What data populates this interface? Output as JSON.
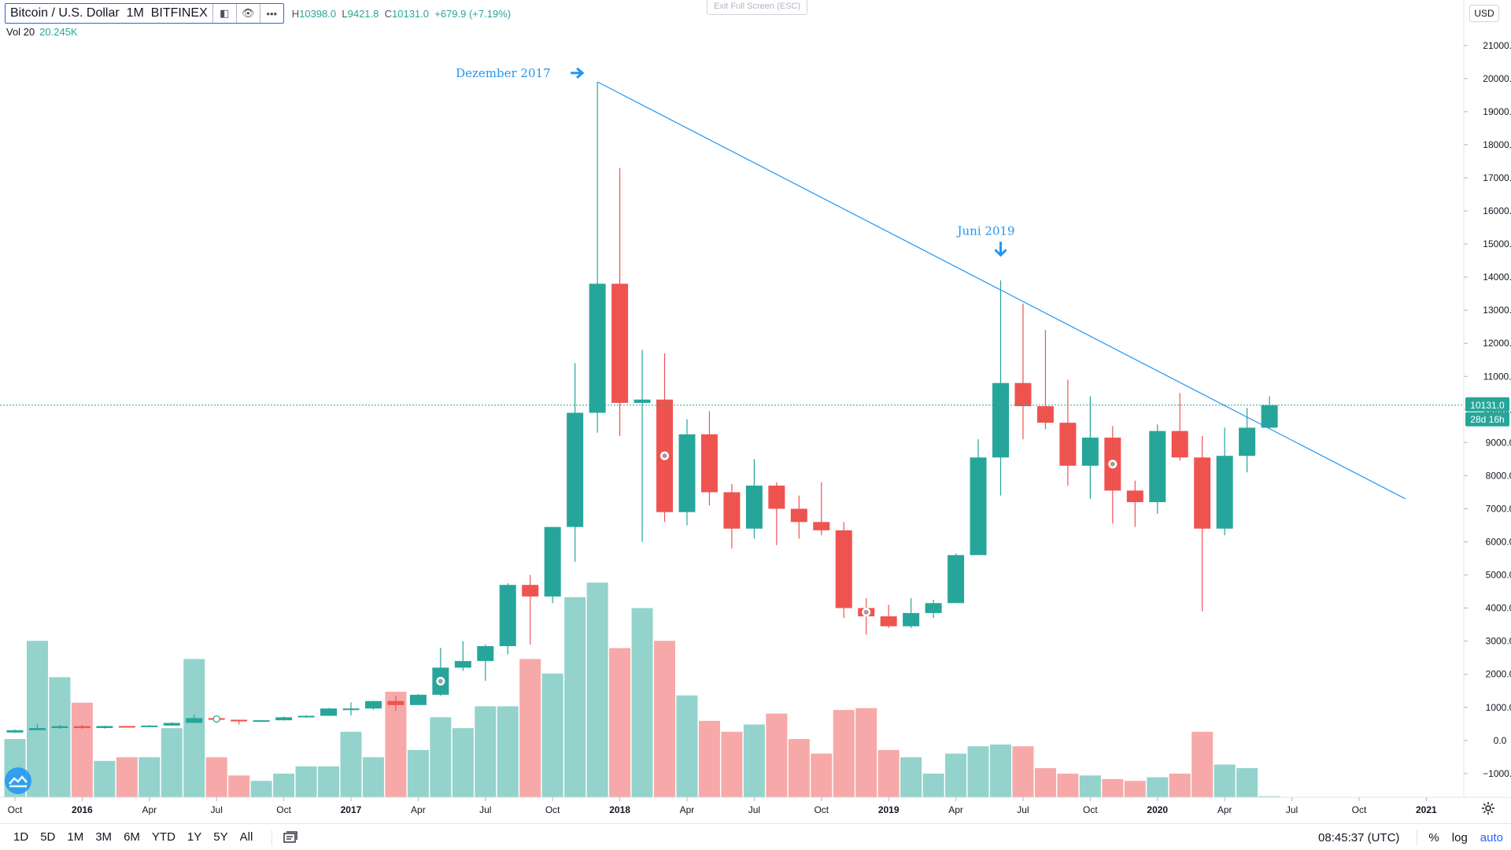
{
  "legend": {
    "symbol": "Bitcoin / U.S. Dollar",
    "interval": "1M",
    "exchange": "BITFINEX",
    "ohlc": {
      "h_label": "H",
      "h": "10398.0",
      "l_label": "L",
      "l": "9421.8",
      "c_label": "C",
      "c": "10131.0",
      "change": "+679.9 (+7.19%)"
    },
    "volume_label": "Vol 20",
    "volume_value": "20.245K"
  },
  "exit_fullscreen": "Exit Full Screen (ESC)",
  "currency": "USD",
  "price_label": "10131.0",
  "countdown_label": "28d 16h",
  "annotations": [
    {
      "text": "Dezember 2017",
      "x": "2017-12",
      "y": 20000
    },
    {
      "text": "Juni 2019",
      "x": "2019-06",
      "y": 14400
    }
  ],
  "timeframes": [
    "1D",
    "5D",
    "1M",
    "3M",
    "6M",
    "YTD",
    "1Y",
    "5Y",
    "All"
  ],
  "bottom_right": {
    "time": "08:45:37 (UTC)",
    "percent": "%",
    "log": "log",
    "auto": "auto"
  },
  "colors": {
    "up": "#26a69a",
    "down": "#ef5350",
    "vol_up": "#93d3cc",
    "vol_down": "#f6a9a8",
    "trendline": "#2196f3",
    "price_line": "#26a69a"
  },
  "icons": [
    "chart-type-icon",
    "eye-icon",
    "more-icon",
    "compare-icon",
    "gear-icon",
    "tradingview-logo-icon"
  ],
  "chart_data": {
    "type": "candlestick",
    "x_axis_ticks": [
      "Oct",
      "2016",
      "Apr",
      "Jul",
      "Oct",
      "2017",
      "Apr",
      "Jul",
      "Oct",
      "2018",
      "Apr",
      "Jul",
      "Oct",
      "2019",
      "Apr",
      "Jul",
      "Oct",
      "2020",
      "Apr",
      "Jul",
      "Oct",
      "2021"
    ],
    "y_axis_ticks": [
      -1000,
      0,
      1000,
      2000,
      3000,
      4000,
      5000,
      6000,
      7000,
      8000,
      9000,
      10000,
      11000,
      12000,
      13000,
      14000,
      15000,
      16000,
      17000,
      18000,
      19000,
      20000,
      21000
    ],
    "ylim": [
      -1800,
      22300
    ],
    "volume_ylim": [
      0,
      7500
    ],
    "trendline": {
      "from": {
        "x": "2017-12",
        "y": 19900
      },
      "to": {
        "x": "2020-12",
        "y": 7300
      }
    },
    "current_price": 10131,
    "candles": [
      {
        "t": "2015-10",
        "o": 240,
        "h": 330,
        "l": 230,
        "c": 310,
        "v": 1600
      },
      {
        "t": "2015-11",
        "o": 310,
        "h": 500,
        "l": 300,
        "c": 375,
        "v": 4300
      },
      {
        "t": "2015-12",
        "o": 375,
        "h": 470,
        "l": 350,
        "c": 430,
        "v": 3300
      },
      {
        "t": "2016-01",
        "o": 430,
        "h": 470,
        "l": 350,
        "c": 375,
        "v": 2600
      },
      {
        "t": "2016-02",
        "o": 375,
        "h": 445,
        "l": 360,
        "c": 435,
        "v": 1000
      },
      {
        "t": "2016-03",
        "o": 435,
        "h": 440,
        "l": 400,
        "c": 415,
        "v": 1100
      },
      {
        "t": "2016-04",
        "o": 415,
        "h": 465,
        "l": 410,
        "c": 450,
        "v": 1100
      },
      {
        "t": "2016-05",
        "o": 450,
        "h": 550,
        "l": 440,
        "c": 530,
        "v": 1900
      },
      {
        "t": "2016-06",
        "o": 530,
        "h": 780,
        "l": 525,
        "c": 675,
        "v": 3800
      },
      {
        "t": "2016-07",
        "o": 675,
        "h": 680,
        "l": 600,
        "c": 625,
        "v": 1100
      },
      {
        "t": "2016-08",
        "o": 625,
        "h": 630,
        "l": 480,
        "c": 575,
        "v": 600
      },
      {
        "t": "2016-09",
        "o": 575,
        "h": 620,
        "l": 570,
        "c": 610,
        "v": 450
      },
      {
        "t": "2016-10",
        "o": 610,
        "h": 720,
        "l": 600,
        "c": 700,
        "v": 650
      },
      {
        "t": "2016-11",
        "o": 700,
        "h": 760,
        "l": 690,
        "c": 745,
        "v": 850
      },
      {
        "t": "2016-12",
        "o": 745,
        "h": 980,
        "l": 745,
        "c": 965,
        "v": 850
      },
      {
        "t": "2017-01",
        "o": 965,
        "h": 1150,
        "l": 750,
        "c": 965,
        "v": 1800
      },
      {
        "t": "2017-02",
        "o": 965,
        "h": 1200,
        "l": 920,
        "c": 1190,
        "v": 1100
      },
      {
        "t": "2017-03",
        "o": 1190,
        "h": 1350,
        "l": 890,
        "c": 1070,
        "v": 2900
      },
      {
        "t": "2017-04",
        "o": 1070,
        "h": 1400,
        "l": 1070,
        "c": 1380,
        "v": 1300
      },
      {
        "t": "2017-05",
        "o": 1380,
        "h": 2800,
        "l": 1350,
        "c": 2200,
        "v": 2200
      },
      {
        "t": "2017-06",
        "o": 2200,
        "h": 3000,
        "l": 2100,
        "c": 2400,
        "v": 1900
      },
      {
        "t": "2017-07",
        "o": 2400,
        "h": 2900,
        "l": 1800,
        "c": 2850,
        "v": 2500
      },
      {
        "t": "2017-08",
        "o": 2850,
        "h": 4750,
        "l": 2600,
        "c": 4700,
        "v": 2500
      },
      {
        "t": "2017-09",
        "o": 4700,
        "h": 5000,
        "l": 2900,
        "c": 4350,
        "v": 3800
      },
      {
        "t": "2017-10",
        "o": 4350,
        "h": 6450,
        "l": 4150,
        "c": 6450,
        "v": 3400
      },
      {
        "t": "2017-11",
        "o": 6450,
        "h": 11400,
        "l": 5400,
        "c": 9900,
        "v": 5500
      },
      {
        "t": "2017-12",
        "o": 9900,
        "h": 19900,
        "l": 9300,
        "c": 13800,
        "v": 5900
      },
      {
        "t": "2018-01",
        "o": 13800,
        "h": 17300,
        "l": 9200,
        "c": 10200,
        "v": 4100
      },
      {
        "t": "2018-02",
        "o": 10200,
        "h": 11800,
        "l": 6000,
        "c": 10300,
        "v": 5200
      },
      {
        "t": "2018-03",
        "o": 10300,
        "h": 11700,
        "l": 6600,
        "c": 6900,
        "v": 4300
      },
      {
        "t": "2018-04",
        "o": 6900,
        "h": 9700,
        "l": 6500,
        "c": 9250,
        "v": 2800
      },
      {
        "t": "2018-05",
        "o": 9250,
        "h": 9950,
        "l": 7100,
        "c": 7500,
        "v": 2100
      },
      {
        "t": "2018-06",
        "o": 7500,
        "h": 7750,
        "l": 5800,
        "c": 6400,
        "v": 1800
      },
      {
        "t": "2018-07",
        "o": 6400,
        "h": 8500,
        "l": 6100,
        "c": 7700,
        "v": 2000
      },
      {
        "t": "2018-08",
        "o": 7700,
        "h": 7800,
        "l": 5900,
        "c": 7000,
        "v": 2300
      },
      {
        "t": "2018-09",
        "o": 7000,
        "h": 7400,
        "l": 6100,
        "c": 6600,
        "v": 1600
      },
      {
        "t": "2018-10",
        "o": 6600,
        "h": 7800,
        "l": 6200,
        "c": 6350,
        "v": 1200
      },
      {
        "t": "2018-11",
        "o": 6350,
        "h": 6600,
        "l": 3700,
        "c": 4000,
        "v": 2400
      },
      {
        "t": "2018-12",
        "o": 4000,
        "h": 4300,
        "l": 3200,
        "c": 3750,
        "v": 2450
      },
      {
        "t": "2019-01",
        "o": 3750,
        "h": 4100,
        "l": 3400,
        "c": 3450,
        "v": 1300
      },
      {
        "t": "2019-02",
        "o": 3450,
        "h": 4300,
        "l": 3400,
        "c": 3850,
        "v": 1100
      },
      {
        "t": "2019-03",
        "o": 3850,
        "h": 4250,
        "l": 3700,
        "c": 4150,
        "v": 650
      },
      {
        "t": "2019-04",
        "o": 4150,
        "h": 5650,
        "l": 4150,
        "c": 5600,
        "v": 1200
      },
      {
        "t": "2019-05",
        "o": 5600,
        "h": 9100,
        "l": 5600,
        "c": 8550,
        "v": 1400
      },
      {
        "t": "2019-06",
        "o": 8550,
        "h": 13900,
        "l": 7400,
        "c": 10800,
        "v": 1450
      },
      {
        "t": "2019-07",
        "o": 10800,
        "h": 13200,
        "l": 9100,
        "c": 10100,
        "v": 1400
      },
      {
        "t": "2019-08",
        "o": 10100,
        "h": 12400,
        "l": 9400,
        "c": 9600,
        "v": 800
      },
      {
        "t": "2019-09",
        "o": 9600,
        "h": 10900,
        "l": 7700,
        "c": 8300,
        "v": 650
      },
      {
        "t": "2019-10",
        "o": 8300,
        "h": 10400,
        "l": 7300,
        "c": 9150,
        "v": 600
      },
      {
        "t": "2019-11",
        "o": 9150,
        "h": 9500,
        "l": 6550,
        "c": 7550,
        "v": 500
      },
      {
        "t": "2019-12",
        "o": 7550,
        "h": 7850,
        "l": 6450,
        "c": 7200,
        "v": 450
      },
      {
        "t": "2020-01",
        "o": 7200,
        "h": 9550,
        "l": 6850,
        "c": 9350,
        "v": 550
      },
      {
        "t": "2020-02",
        "o": 9350,
        "h": 10500,
        "l": 8450,
        "c": 8550,
        "v": 650
      },
      {
        "t": "2020-03",
        "o": 8550,
        "h": 9200,
        "l": 3900,
        "c": 6400,
        "v": 1800
      },
      {
        "t": "2020-04",
        "o": 6400,
        "h": 9450,
        "l": 6200,
        "c": 8600,
        "v": 900
      },
      {
        "t": "2020-05",
        "o": 8600,
        "h": 10050,
        "l": 8100,
        "c": 9450,
        "v": 800
      },
      {
        "t": "2020-06",
        "o": 9450,
        "h": 10398,
        "l": 9421.8,
        "c": 10131,
        "v": 30
      }
    ],
    "event_markers": [
      {
        "t": "2016-07",
        "style": "hollow"
      },
      {
        "t": "2017-05",
        "style": "dot"
      },
      {
        "t": "2018-03",
        "style": "dot"
      },
      {
        "t": "2018-12",
        "style": "dot"
      },
      {
        "t": "2019-11",
        "style": "dot"
      }
    ]
  }
}
